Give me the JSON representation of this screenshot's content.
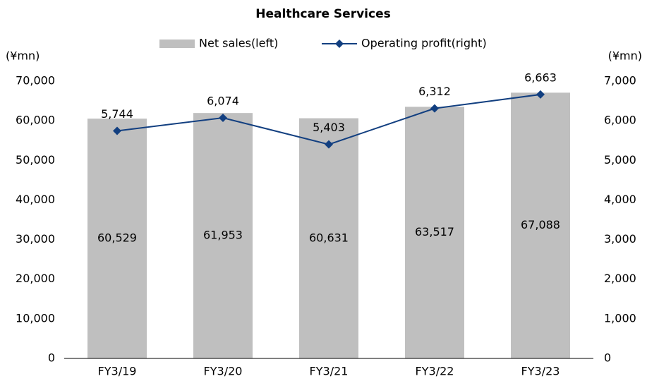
{
  "chart_data": {
    "type": "bar_line",
    "title": "Healthcare Services",
    "y_label": "(¥mn)",
    "y2_label": "(¥mn)",
    "categories": [
      "FY3/19",
      "FY3/20",
      "FY3/21",
      "FY3/22",
      "FY3/23"
    ],
    "series": [
      {
        "name": "Net sales(left)",
        "type": "bar",
        "color": "#bfbfbf",
        "axis": "y",
        "values": [
          60529,
          61953,
          60631,
          63517,
          67088
        ],
        "value_labels": [
          "60,529",
          "61,953",
          "60,631",
          "63,517",
          "67,088"
        ]
      },
      {
        "name": "Operating profit(right)",
        "type": "line",
        "color": "#123f80",
        "axis": "y2",
        "values": [
          5744,
          6074,
          5403,
          6312,
          6663
        ],
        "value_labels": [
          "5,744",
          "6,074",
          "5,403",
          "6,312",
          "6,663"
        ]
      }
    ],
    "ylim": [
      0,
      70000
    ],
    "yticks": [
      0,
      {
        "value": 10000,
        "label": "10,000"
      },
      {
        "value": 20000,
        "label": "20,000"
      },
      {
        "value": 30000,
        "label": "30,000"
      },
      {
        "value": 40000,
        "label": "40,000"
      },
      {
        "value": 50000,
        "label": "50,000"
      },
      {
        "value": 60000,
        "label": "60,000"
      },
      {
        "value": 70000,
        "label": "70,000"
      }
    ],
    "y2lim": [
      0,
      7000
    ],
    "y2ticks": [
      0,
      {
        "value": 1000,
        "label": "1,000"
      },
      {
        "value": 2000,
        "label": "2,000"
      },
      {
        "value": 3000,
        "label": "3,000"
      },
      {
        "value": 4000,
        "label": "4,000"
      },
      {
        "value": 5000,
        "label": "5,000"
      },
      {
        "value": 6000,
        "label": "6,000"
      },
      {
        "value": 7000,
        "label": "7,000"
      }
    ],
    "grid": false,
    "legend": "top"
  }
}
